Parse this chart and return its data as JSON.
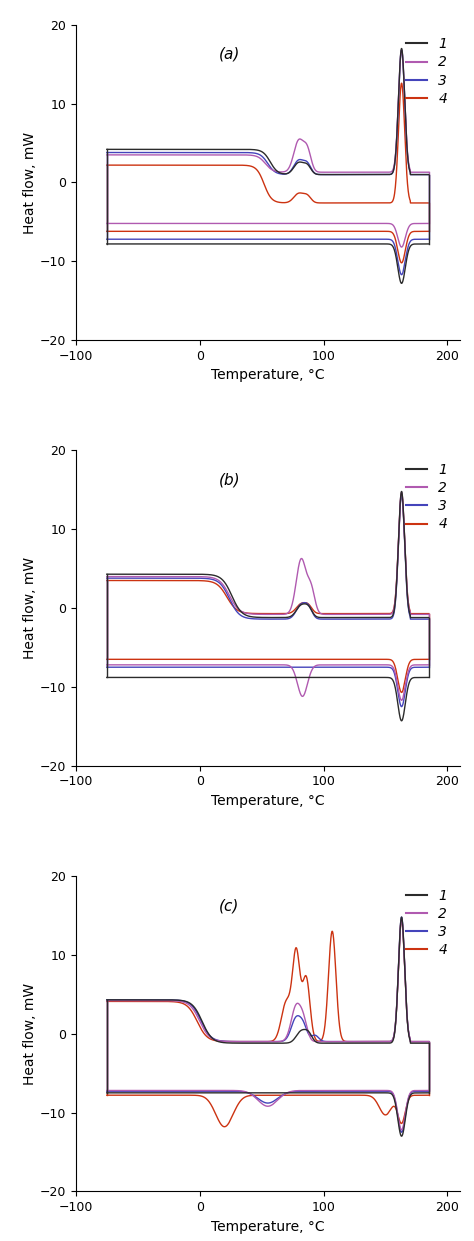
{
  "panels": [
    "(a)",
    "(b)",
    "(c)"
  ],
  "ylabel": "Heat flow, mW",
  "xlabel": "Temperature, °C",
  "xlim": [
    -100,
    210
  ],
  "ylim": [
    -20,
    20
  ],
  "xticks": [
    -100,
    0,
    100,
    200
  ],
  "yticks": [
    -20,
    -10,
    0,
    10,
    20
  ],
  "colors": {
    "1": "#2b2b2b",
    "2": "#b05ab0",
    "3": "#4444bb",
    "4": "#cc3311"
  },
  "linewidth": 1.0,
  "figsize": [
    4.74,
    12.41
  ],
  "dpi": 100
}
